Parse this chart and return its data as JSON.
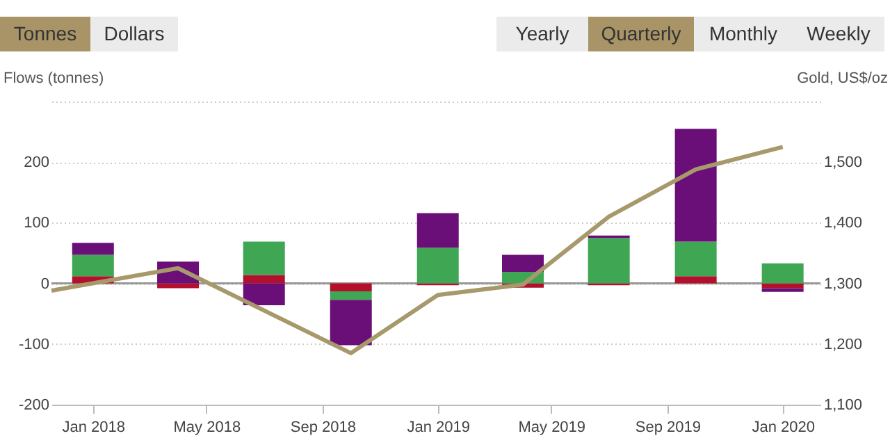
{
  "chart_data": {
    "type": "bar",
    "stacked": true,
    "xlabel": null,
    "ylabel": "Flows (tonnes)",
    "y2label": "Gold, US$/oz",
    "x": [
      "2018-01-01",
      "2018-04-01",
      "2018-07-01",
      "2018-10-01",
      "2019-01-01",
      "2019-04-01",
      "2019-07-01",
      "2019-10-01",
      "2020-01-01"
    ],
    "series": [
      {
        "color": "#b3102e",
        "values": [
          12,
          -8,
          14,
          -13,
          -3,
          -7,
          -3,
          12,
          -8
        ]
      },
      {
        "color": "#3fa654",
        "values": [
          35,
          null,
          55,
          -14,
          59,
          19,
          75,
          57,
          33
        ]
      },
      {
        "color": "#6a0f78",
        "values": [
          20,
          36,
          -36,
          -75,
          57,
          28,
          4,
          186,
          -6
        ]
      },
      {
        "type": "line",
        "axis": "y2",
        "color": "#a8996c",
        "x": [
          "2017-11-18",
          "2018-04-01",
          "2018-10-01",
          "2019-01-01",
          "2019-04-01",
          "2019-07-01",
          "2019-10-01",
          "2020-01-01"
        ],
        "values": [
          1288,
          1325,
          1185,
          1281,
          1298,
          1410,
          1488,
          1525
        ]
      }
    ],
    "xlim": [
      "2017-11-18",
      "2020-02-10"
    ],
    "xticks": [
      {
        "value": "2018-01-01",
        "label": "Jan 2018"
      },
      {
        "value": "2018-05-01",
        "label": "May 2018"
      },
      {
        "value": "2018-09-01",
        "label": "Sep 2018"
      },
      {
        "value": "2019-01-01",
        "label": "Jan 2019"
      },
      {
        "value": "2019-05-01",
        "label": "May 2019"
      },
      {
        "value": "2019-09-01",
        "label": "Sep 2019"
      },
      {
        "value": "2020-01-01",
        "label": "Jan 2020"
      }
    ],
    "ylim": [
      -200,
      300
    ],
    "yticks": [
      -200,
      -100,
      0,
      100,
      200,
      {
        "value": 300,
        "label": null
      }
    ],
    "y2lim": [
      1100,
      1600
    ],
    "y2ticks": [
      {
        "value": 1100,
        "label": "1,100"
      },
      {
        "value": 1200,
        "label": "1,200"
      },
      {
        "value": 1300,
        "label": "1,300"
      },
      {
        "value": 1400,
        "label": "1,400"
      },
      {
        "value": 1500,
        "label": "1,500"
      },
      {
        "value": 1600,
        "label": null
      }
    ],
    "ref_lines": [
      {
        "axis": "y",
        "value": 0,
        "color": "#999999"
      }
    ],
    "grid": "y",
    "legend": false,
    "annotations": [
      "Tonnes",
      "Dollars",
      "Yearly",
      "Quarterly",
      "Monthly",
      "Weekly"
    ]
  }
}
